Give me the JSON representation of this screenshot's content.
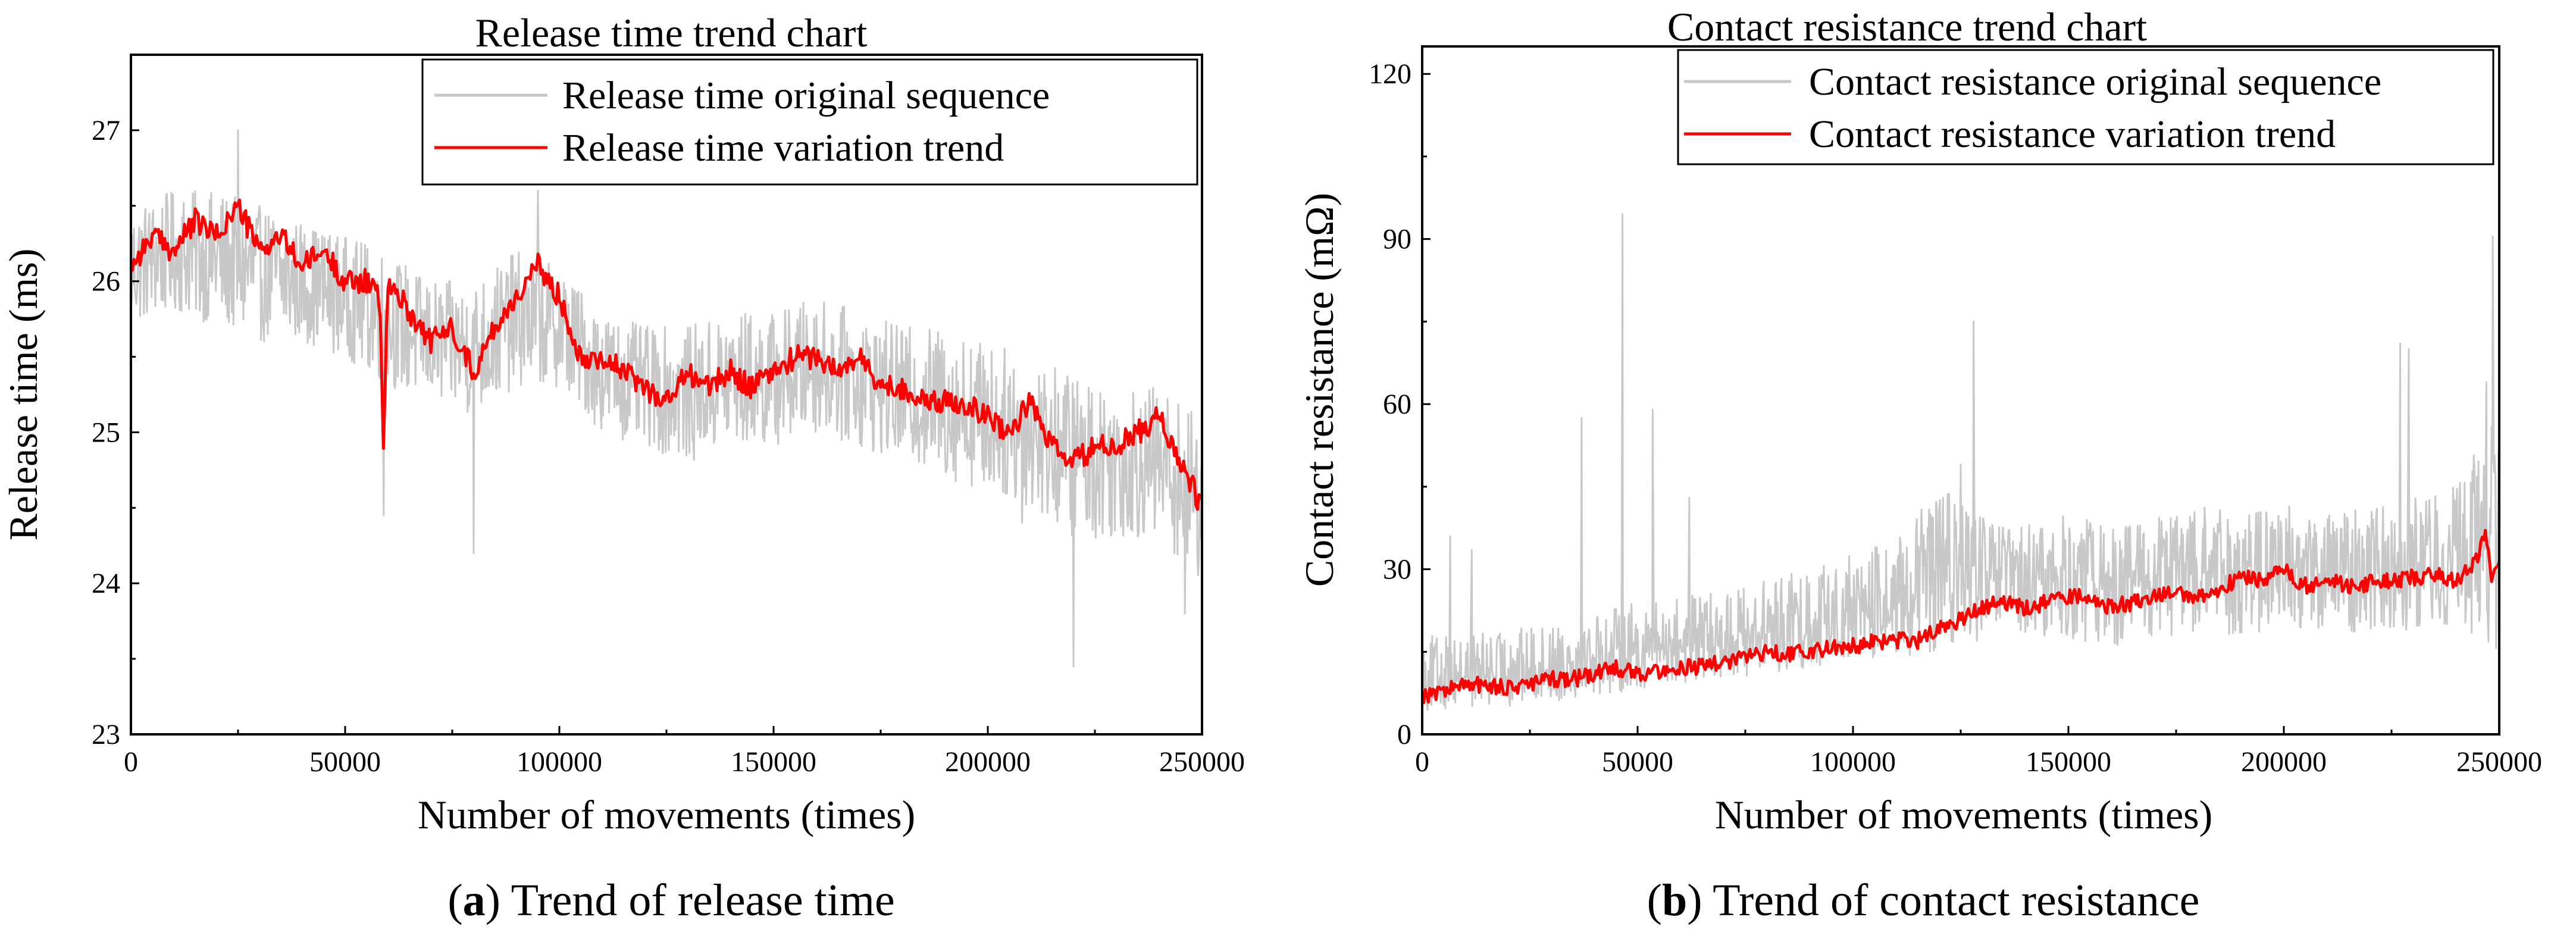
{
  "figure": {
    "captions": [
      {
        "open": "(",
        "letter": "a",
        "close": ")",
        "text": " Trend of release time"
      },
      {
        "open": "(",
        "letter": "b",
        "close": ")",
        "text": " Trend of contact resistance"
      }
    ]
  },
  "chart_data": [
    {
      "type": "line",
      "title": "Release time trend chart",
      "xlabel": "Number of movements (times)",
      "ylabel": "Release time (ms)",
      "xlim": [
        0,
        250000
      ],
      "ylim": [
        23,
        27.5
      ],
      "xticks": [
        0,
        50000,
        100000,
        150000,
        200000,
        250000
      ],
      "yticks": [
        23,
        24,
        25,
        26,
        27
      ],
      "legend_position": "top-right",
      "series": [
        {
          "name": "Release time original sequence",
          "color": "#c8c8c8",
          "style": "noisy band around trend",
          "x": [
            0,
            10000,
            20000,
            30000,
            40000,
            50000,
            60000,
            70000,
            80000,
            90000,
            100000,
            110000,
            120000,
            130000,
            140000,
            150000,
            160000,
            170000,
            180000,
            190000,
            200000,
            210000,
            220000,
            230000,
            240000,
            250000
          ],
          "band_low": [
            25.7,
            25.8,
            25.7,
            25.6,
            25.6,
            25.5,
            25.3,
            25.2,
            25.1,
            25.3,
            25.3,
            25.0,
            24.9,
            24.8,
            24.9,
            24.9,
            25.0,
            24.9,
            24.8,
            24.7,
            24.6,
            24.5,
            24.3,
            24.3,
            24.3,
            24.0
          ],
          "band_high": [
            26.5,
            26.6,
            26.6,
            26.5,
            26.4,
            26.3,
            26.2,
            26.0,
            26.0,
            26.2,
            26.1,
            25.8,
            25.7,
            25.7,
            25.8,
            25.8,
            25.9,
            25.8,
            25.7,
            25.7,
            25.6,
            25.5,
            25.4,
            25.3,
            25.3,
            25.1
          ],
          "spikes": [
            [
              25000,
              27.0
            ],
            [
              59000,
              24.45
            ],
            [
              80000,
              24.2
            ],
            [
              95000,
              26.6
            ],
            [
              208000,
              24.4
            ],
            [
              220000,
              23.45
            ],
            [
              246000,
              23.8
            ]
          ]
        },
        {
          "name": "Release time variation trend",
          "color": "#ff0000",
          "x": [
            0,
            5000,
            10000,
            15000,
            20000,
            25000,
            30000,
            35000,
            40000,
            45000,
            50000,
            55000,
            58000,
            59000,
            60000,
            65000,
            70000,
            75000,
            80000,
            85000,
            90000,
            95000,
            100000,
            105000,
            110000,
            115000,
            120000,
            125000,
            130000,
            135000,
            140000,
            145000,
            150000,
            155000,
            160000,
            165000,
            170000,
            175000,
            180000,
            185000,
            190000,
            195000,
            200000,
            205000,
            210000,
            215000,
            220000,
            225000,
            230000,
            235000,
            240000,
            245000,
            250000
          ],
          "y": [
            26.1,
            26.3,
            26.2,
            26.4,
            26.3,
            26.5,
            26.2,
            26.3,
            26.1,
            26.2,
            26.0,
            26.0,
            25.9,
            24.9,
            26.0,
            25.8,
            25.6,
            25.7,
            25.4,
            25.7,
            25.9,
            26.1,
            25.9,
            25.5,
            25.5,
            25.4,
            25.3,
            25.2,
            25.4,
            25.3,
            25.4,
            25.3,
            25.4,
            25.5,
            25.5,
            25.4,
            25.5,
            25.3,
            25.3,
            25.2,
            25.2,
            25.2,
            25.1,
            25.0,
            25.2,
            24.9,
            24.8,
            24.9,
            24.9,
            25.0,
            25.1,
            24.8,
            24.5
          ]
        }
      ]
    },
    {
      "type": "line",
      "title": "Contact resistance trend chart",
      "xlabel": "Number of movements (times)",
      "ylabel": "Contact resistance (mΩ)",
      "xlim": [
        0,
        250000
      ],
      "ylim": [
        0,
        125
      ],
      "xticks": [
        0,
        50000,
        100000,
        150000,
        200000,
        250000
      ],
      "yticks": [
        0,
        30,
        60,
        90,
        120
      ],
      "legend_position": "top-right",
      "series": [
        {
          "name": "Contact resistance original sequence",
          "color": "#c8c8c8",
          "style": "noisy band around trend",
          "x": [
            0,
            10000,
            20000,
            30000,
            40000,
            50000,
            60000,
            70000,
            80000,
            90000,
            100000,
            110000,
            120000,
            130000,
            140000,
            150000,
            160000,
            170000,
            180000,
            190000,
            200000,
            210000,
            220000,
            230000,
            240000,
            250000
          ],
          "band_low": [
            4,
            5,
            5,
            6,
            7,
            8,
            9,
            10,
            11,
            12,
            13,
            14,
            15,
            17,
            16,
            17,
            16,
            17,
            18,
            18,
            19,
            18,
            19,
            19,
            20,
            14
          ],
          "band_high": [
            18,
            18,
            19,
            20,
            22,
            24,
            25,
            26,
            28,
            30,
            33,
            35,
            45,
            40,
            38,
            40,
            38,
            40,
            42,
            40,
            42,
            40,
            42,
            43,
            45,
            60
          ],
          "spikes": [
            [
              6500,
              36
            ],
            [
              11500,
              33.5
            ],
            [
              37000,
              57.5
            ],
            [
              46500,
              94.5
            ],
            [
              53500,
              59
            ],
            [
              62000,
              43
            ],
            [
              125000,
              49
            ],
            [
              128000,
              75
            ],
            [
              227000,
              71
            ],
            [
              229000,
              70
            ],
            [
              247000,
              64
            ],
            [
              248500,
              90.5
            ]
          ]
        },
        {
          "name": "Contact resistance variation trend",
          "color": "#ff0000",
          "x": [
            0,
            5000,
            10000,
            15000,
            20000,
            25000,
            30000,
            35000,
            40000,
            45000,
            50000,
            55000,
            60000,
            65000,
            70000,
            75000,
            80000,
            85000,
            90000,
            95000,
            100000,
            105000,
            110000,
            115000,
            120000,
            125000,
            130000,
            135000,
            140000,
            145000,
            150000,
            155000,
            160000,
            165000,
            170000,
            175000,
            180000,
            185000,
            190000,
            195000,
            200000,
            205000,
            210000,
            215000,
            220000,
            225000,
            230000,
            235000,
            240000,
            245000,
            247000,
            248000,
            250000
          ],
          "y": [
            7,
            8,
            9,
            9,
            8.5,
            9,
            10,
            10,
            11,
            12,
            11,
            11.5,
            12,
            12.5,
            13,
            14,
            15,
            14.5,
            15,
            16,
            16,
            17,
            17,
            17,
            19,
            21,
            23,
            24,
            23,
            24,
            25,
            25,
            23,
            24,
            25,
            26,
            25,
            26,
            29,
            28,
            30,
            27,
            28,
            27,
            27.5,
            28,
            28.5,
            29,
            28,
            32,
            37,
            29,
            30
          ]
        }
      ]
    }
  ]
}
